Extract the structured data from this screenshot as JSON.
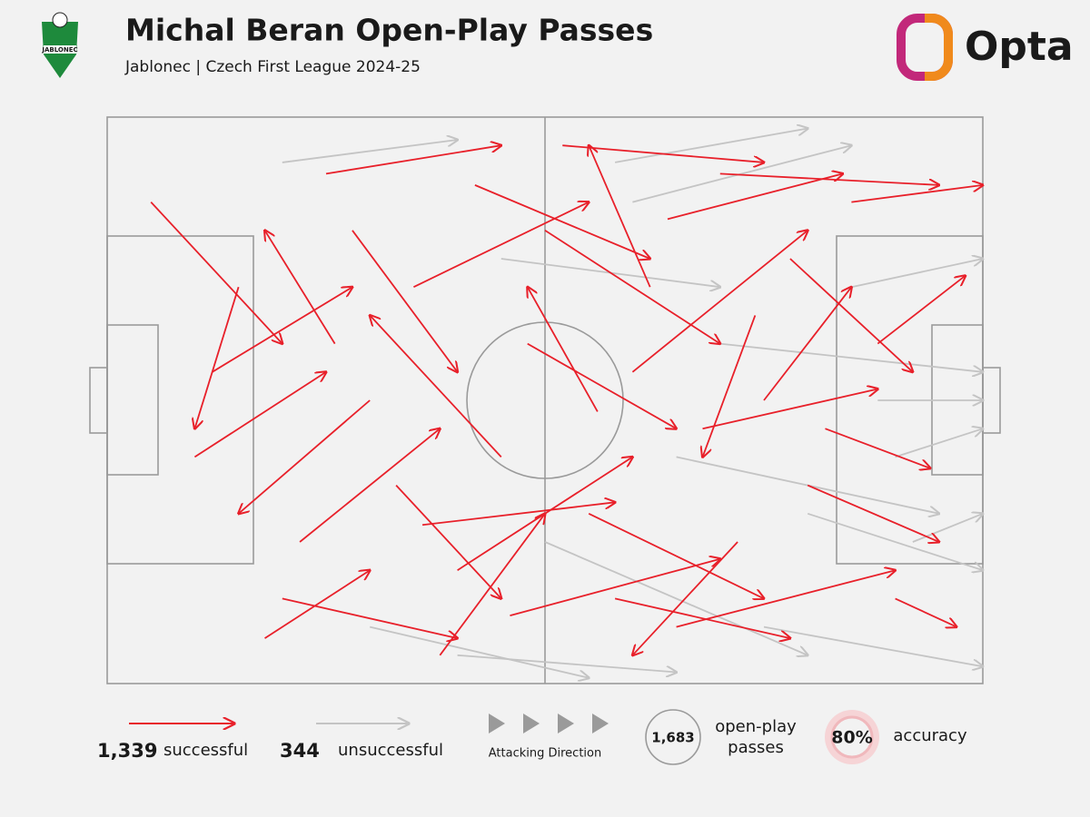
{
  "chart_data": {
    "type": "pass-map",
    "title": "Michal Beran Open-Play Passes",
    "subtitle": "Jablonec | Czech First League 2024-25",
    "team_badge": "JABLONEC",
    "brand": "Opta",
    "xlim": [
      0,
      100
    ],
    "ylim": [
      0,
      100
    ],
    "series": [
      {
        "name": "unsuccessful",
        "color": "#c4c4c4",
        "count": {
          "value": 344,
          "label": "344"
        },
        "passes": [
          [
            60,
            15,
            85,
            5
          ],
          [
            70,
            40,
            100,
            45
          ],
          [
            80,
            70,
            100,
            80
          ],
          [
            40,
            95,
            65,
            98
          ],
          [
            85,
            30,
            100,
            25
          ],
          [
            50,
            75,
            80,
            95
          ],
          [
            90,
            60,
            100,
            55
          ],
          [
            20,
            8,
            40,
            4
          ],
          [
            75,
            90,
            100,
            97
          ],
          [
            65,
            60,
            95,
            70
          ],
          [
            45,
            25,
            70,
            30
          ],
          [
            88,
            50,
            100,
            50
          ],
          [
            30,
            90,
            55,
            99
          ],
          [
            58,
            8,
            80,
            2
          ],
          [
            92,
            75,
            100,
            70
          ]
        ]
      },
      {
        "name": "successful",
        "color": "#e8202a",
        "count": {
          "value": 1339,
          "label": "1,339"
        },
        "passes": [
          [
            5,
            15,
            20,
            40
          ],
          [
            25,
            10,
            45,
            5
          ],
          [
            30,
            50,
            15,
            70
          ],
          [
            40,
            80,
            60,
            60
          ],
          [
            50,
            20,
            70,
            40
          ],
          [
            55,
            70,
            75,
            85
          ],
          [
            60,
            45,
            80,
            20
          ],
          [
            35,
            30,
            55,
            15
          ],
          [
            65,
            90,
            90,
            80
          ],
          [
            70,
            10,
            95,
            12
          ],
          [
            45,
            60,
            30,
            35
          ],
          [
            20,
            85,
            40,
            92
          ],
          [
            75,
            50,
            85,
            30
          ],
          [
            80,
            65,
            95,
            75
          ],
          [
            10,
            60,
            25,
            45
          ],
          [
            38,
            95,
            50,
            70
          ],
          [
            62,
            30,
            55,
            5
          ],
          [
            85,
            15,
            100,
            12
          ],
          [
            48,
            40,
            65,
            55
          ],
          [
            28,
            20,
            40,
            45
          ],
          [
            72,
            75,
            60,
            95
          ],
          [
            58,
            85,
            78,
            92
          ],
          [
            15,
            30,
            10,
            55
          ],
          [
            42,
            12,
            62,
            25
          ],
          [
            88,
            40,
            98,
            28
          ],
          [
            33,
            65,
            45,
            85
          ],
          [
            68,
            55,
            88,
            48
          ],
          [
            52,
            5,
            75,
            8
          ],
          [
            22,
            75,
            38,
            55
          ],
          [
            78,
            25,
            92,
            45
          ],
          [
            46,
            88,
            70,
            78
          ],
          [
            18,
            92,
            30,
            80
          ],
          [
            90,
            85,
            97,
            90
          ],
          [
            56,
            52,
            48,
            30
          ],
          [
            64,
            18,
            84,
            10
          ],
          [
            26,
            40,
            18,
            20
          ],
          [
            36,
            72,
            58,
            68
          ],
          [
            74,
            35,
            68,
            60
          ],
          [
            12,
            45,
            28,
            30
          ],
          [
            82,
            55,
            94,
            62
          ]
        ]
      }
    ],
    "direction_label": "Attacking Direction",
    "total": {
      "value": 1683,
      "label": "1,683"
    },
    "total_label": [
      "open-play",
      "passes"
    ],
    "accuracy": {
      "value": 80,
      "label": "80%"
    },
    "accuracy_label": "accuracy"
  }
}
